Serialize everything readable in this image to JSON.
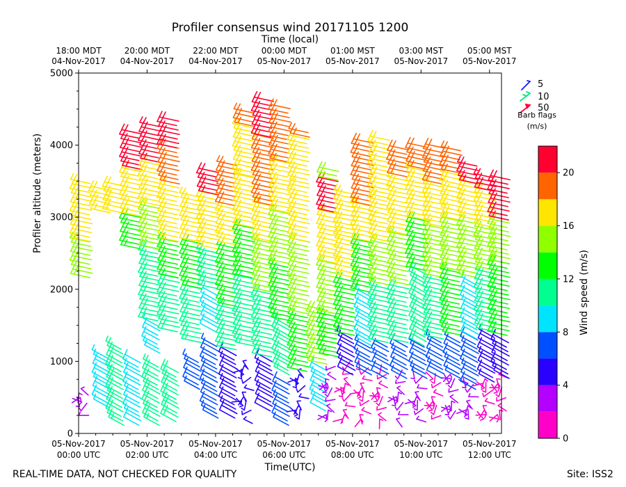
{
  "chart_data": {
    "type": "wind barb time-height",
    "title": "Profiler consensus wind 20171105 1200",
    "top_axis_label": "Time (local)",
    "xlabel": "Time(UTC)",
    "ylabel": "Profiler altitude (meters)",
    "colorbar_label": "Wind speed (m/s)",
    "footer_left": "REAL-TIME DATA, NOT CHECKED FOR QUALITY",
    "footer_right": "Site: ISS2",
    "x_range_hours_utc": [
      0,
      12.35
    ],
    "ylim": [
      0,
      5000
    ],
    "y_ticks": [
      "0",
      "1000",
      "2000",
      "3000",
      "4000",
      "5000"
    ],
    "x_ticks": [
      {
        "hour": 0,
        "date": "05-Nov-2017",
        "time": "00:00 UTC"
      },
      {
        "hour": 2,
        "date": "05-Nov-2017",
        "time": "02:00 UTC"
      },
      {
        "hour": 4,
        "date": "05-Nov-2017",
        "time": "04:00 UTC"
      },
      {
        "hour": 6,
        "date": "05-Nov-2017",
        "time": "06:00 UTC"
      },
      {
        "hour": 8,
        "date": "05-Nov-2017",
        "time": "08:00 UTC"
      },
      {
        "hour": 10,
        "date": "05-Nov-2017",
        "time": "10:00 UTC"
      },
      {
        "hour": 12,
        "date": "05-Nov-2017",
        "time": "12:00 UTC"
      }
    ],
    "top_ticks": [
      {
        "hour": 0,
        "time": "18:00 MDT",
        "date": "04-Nov-2017"
      },
      {
        "hour": 2,
        "time": "20:00 MDT",
        "date": "04-Nov-2017"
      },
      {
        "hour": 4,
        "time": "22:00 MDT",
        "date": "04-Nov-2017"
      },
      {
        "hour": 6,
        "time": "00:00 MDT",
        "date": "05-Nov-2017"
      },
      {
        "hour": 8,
        "time": "01:00 MST",
        "date": "05-Nov-2017"
      },
      {
        "hour": 10,
        "time": "03:00 MST",
        "date": "05-Nov-2017"
      },
      {
        "hour": 12,
        "time": "05:00 MST",
        "date": "05-Nov-2017"
      }
    ],
    "barb_legend": {
      "title": "Barb flags (m/s)",
      "entries": [
        {
          "label": "5",
          "color": "#1a1aff"
        },
        {
          "label": "10",
          "color": "#00e87a"
        },
        {
          "label": "50",
          "color": "#ff0030"
        }
      ]
    },
    "colorbar": {
      "vmin": 0,
      "vmax": 22,
      "tick_values": [
        0,
        4,
        8,
        12,
        16,
        20
      ],
      "tick_labels": [
        "0",
        "4",
        "8",
        "12",
        "16",
        "20"
      ],
      "bins": [
        {
          "from": 0,
          "to": 2,
          "color": "#ff00c8"
        },
        {
          "from": 2,
          "to": 4,
          "color": "#b400ff"
        },
        {
          "from": 4,
          "to": 6,
          "color": "#2a00ff"
        },
        {
          "from": 6,
          "to": 8,
          "color": "#0050ff"
        },
        {
          "from": 8,
          "to": 10,
          "color": "#00e4ff"
        },
        {
          "from": 10,
          "to": 12,
          "color": "#00ff90"
        },
        {
          "from": 12,
          "to": 14,
          "color": "#00ff00"
        },
        {
          "from": 14,
          "to": 16,
          "color": "#90ff00"
        },
        {
          "from": 16,
          "to": 18,
          "color": "#ffe600"
        },
        {
          "from": 18,
          "to": 20,
          "color": "#ff6400"
        },
        {
          "from": 20,
          "to": 22,
          "color": "#ff0030"
        }
      ]
    },
    "wind_columns": [
      {
        "t": 0.05,
        "segments": [
          [
            250,
            650,
            3
          ],
          [
            2200,
            2700,
            14
          ],
          [
            2700,
            3550,
            17
          ]
        ]
      },
      {
        "t": 0.6,
        "segments": [
          [
            450,
            1150,
            8
          ],
          [
            3100,
            3450,
            17
          ]
        ]
      },
      {
        "t": 1.0,
        "segments": [
          [
            200,
            1300,
            10
          ],
          [
            3100,
            3500,
            17
          ]
        ]
      },
      {
        "t": 1.5,
        "segments": [
          [
            200,
            1100,
            9
          ],
          [
            2600,
            3050,
            13
          ],
          [
            3050,
            3700,
            17
          ],
          [
            3700,
            4200,
            20
          ]
        ]
      },
      {
        "t": 2.05,
        "segments": [
          [
            200,
            1050,
            10
          ],
          [
            1200,
            1600,
            8
          ],
          [
            1600,
            2600,
            11
          ],
          [
            2600,
            3200,
            14
          ],
          [
            3200,
            3800,
            17
          ],
          [
            3800,
            4300,
            20
          ]
        ]
      },
      {
        "t": 2.6,
        "segments": [
          [
            250,
            950,
            10
          ],
          [
            1450,
            2200,
            11
          ],
          [
            2200,
            2700,
            13
          ],
          [
            2700,
            3500,
            17
          ],
          [
            3500,
            4000,
            19
          ],
          [
            4000,
            4400,
            21
          ]
        ]
      },
      {
        "t": 3.25,
        "segments": [
          [
            700,
            1100,
            6
          ],
          [
            1300,
            2050,
            11
          ],
          [
            2050,
            2700,
            13
          ],
          [
            2700,
            3350,
            17
          ]
        ]
      },
      {
        "t": 3.75,
        "segments": [
          [
            300,
            1300,
            6
          ],
          [
            1500,
            2050,
            9
          ],
          [
            2050,
            2600,
            11
          ],
          [
            2600,
            3350,
            17
          ],
          [
            3350,
            3700,
            20
          ]
        ]
      },
      {
        "t": 4.3,
        "segments": [
          [
            300,
            1200,
            5
          ],
          [
            1200,
            1800,
            11
          ],
          [
            1800,
            2650,
            13
          ],
          [
            2650,
            3200,
            17
          ],
          [
            3200,
            3800,
            19
          ]
        ]
      },
      {
        "t": 4.8,
        "segments": [
          [
            200,
            1050,
            4
          ],
          [
            1250,
            2200,
            11
          ],
          [
            2200,
            2900,
            13
          ],
          [
            2900,
            3600,
            16
          ],
          [
            3600,
            4300,
            17
          ],
          [
            4300,
            4500,
            19
          ]
        ]
      },
      {
        "t": 5.35,
        "segments": [
          [
            400,
            1100,
            5
          ],
          [
            1100,
            2000,
            11
          ],
          [
            2000,
            2700,
            14
          ],
          [
            2700,
            3200,
            16
          ],
          [
            3200,
            4150,
            19
          ],
          [
            4150,
            4650,
            21
          ]
        ]
      },
      {
        "t": 5.85,
        "segments": [
          [
            200,
            800,
            6
          ],
          [
            900,
            1600,
            10
          ],
          [
            1600,
            2400,
            12
          ],
          [
            2400,
            3100,
            15
          ],
          [
            3100,
            3800,
            17
          ],
          [
            3800,
            4550,
            19
          ]
        ]
      },
      {
        "t": 6.4,
        "segments": [
          [
            200,
            900,
            4
          ],
          [
            900,
            1700,
            13
          ],
          [
            1700,
            2700,
            14
          ],
          [
            2700,
            3500,
            16
          ],
          [
            3500,
            4150,
            17
          ],
          [
            4150,
            4250,
            19
          ]
        ]
      },
      {
        "t": 6.95,
        "segments": [
          [
            400,
            1000,
            9
          ],
          [
            1000,
            1800,
            15
          ]
        ]
      },
      {
        "t": 7.25,
        "segments": [
          [
            200,
            900,
            2
          ],
          [
            1100,
            1700,
            13
          ],
          [
            1700,
            2400,
            14
          ],
          [
            2400,
            3100,
            17
          ],
          [
            3100,
            3550,
            20
          ],
          [
            3550,
            3700,
            15
          ]
        ]
      },
      {
        "t": 7.75,
        "segments": [
          [
            200,
            900,
            1
          ],
          [
            900,
            1400,
            5
          ],
          [
            1400,
            2200,
            13
          ],
          [
            2200,
            2800,
            16
          ],
          [
            2800,
            3400,
            17
          ]
        ]
      },
      {
        "t": 8.25,
        "segments": [
          [
            200,
            900,
            1
          ],
          [
            900,
            1300,
            6
          ],
          [
            1300,
            2000,
            9
          ],
          [
            2000,
            2700,
            13
          ],
          [
            2700,
            3200,
            16
          ],
          [
            3200,
            4100,
            18
          ]
        ]
      },
      {
        "t": 8.75,
        "segments": [
          [
            200,
            850,
            1
          ],
          [
            850,
            1300,
            6
          ],
          [
            1300,
            2100,
            11
          ],
          [
            2100,
            2700,
            14
          ],
          [
            2700,
            3300,
            16
          ],
          [
            3300,
            4150,
            17
          ]
        ]
      },
      {
        "t": 9.3,
        "segments": [
          [
            200,
            800,
            2
          ],
          [
            850,
            1300,
            6
          ],
          [
            1300,
            2100,
            11
          ],
          [
            2100,
            2800,
            14
          ],
          [
            2800,
            3600,
            17
          ],
          [
            3600,
            4000,
            18
          ]
        ]
      },
      {
        "t": 9.85,
        "segments": [
          [
            200,
            800,
            2
          ],
          [
            850,
            1300,
            6
          ],
          [
            1300,
            2300,
            10
          ],
          [
            2300,
            3000,
            13
          ],
          [
            3000,
            3700,
            17
          ],
          [
            3700,
            4050,
            19
          ]
        ]
      },
      {
        "t": 10.35,
        "segments": [
          [
            200,
            800,
            1
          ],
          [
            850,
            1350,
            6
          ],
          [
            1350,
            2200,
            11
          ],
          [
            2200,
            2900,
            14
          ],
          [
            2900,
            3500,
            17
          ],
          [
            3500,
            4000,
            19
          ]
        ]
      },
      {
        "t": 10.85,
        "segments": [
          [
            200,
            850,
            2
          ],
          [
            850,
            1400,
            6
          ],
          [
            1400,
            2300,
            12
          ],
          [
            2300,
            3000,
            14
          ],
          [
            3000,
            3650,
            17
          ],
          [
            3650,
            4000,
            19
          ]
        ]
      },
      {
        "t": 11.35,
        "segments": [
          [
            200,
            700,
            3
          ],
          [
            700,
            1400,
            7
          ],
          [
            1400,
            2200,
            9
          ],
          [
            2200,
            3000,
            15
          ],
          [
            3000,
            3500,
            17
          ],
          [
            3500,
            3800,
            20
          ]
        ]
      },
      {
        "t": 11.85,
        "segments": [
          [
            200,
            800,
            1
          ],
          [
            800,
            1450,
            5
          ],
          [
            1450,
            2300,
            11
          ],
          [
            2300,
            2900,
            14
          ],
          [
            2900,
            3400,
            17
          ],
          [
            3400,
            3600,
            21
          ]
        ]
      },
      {
        "t": 12.25,
        "segments": [
          [
            200,
            850,
            1
          ],
          [
            850,
            1400,
            5
          ],
          [
            1400,
            2400,
            12
          ],
          [
            2400,
            3000,
            15
          ],
          [
            3000,
            3600,
            20
          ]
        ]
      }
    ]
  }
}
